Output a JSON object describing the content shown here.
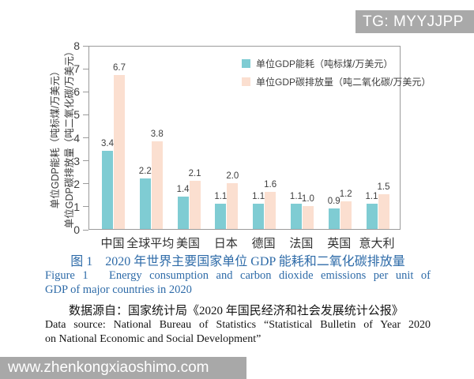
{
  "watermarks": {
    "top": "TG: MYYJJPP",
    "bottom": "www.zhenkongxiaoshimo.com"
  },
  "chart_data": {
    "type": "bar",
    "title": "图 1　2020 年世界主要国家单位 GDP 能耗和二氧化碳排放量",
    "categories": [
      "中国",
      "全球平均",
      "美国",
      "日本",
      "德国",
      "法国",
      "英国",
      "意大利"
    ],
    "series": [
      {
        "name": "单位GDP能耗（吨标煤/万美元）",
        "color": "#7fccd3",
        "values": [
          3.4,
          2.2,
          1.4,
          1.1,
          1.1,
          1.1,
          0.9,
          1.1
        ]
      },
      {
        "name": "单位GDP碳排放量（吨二氧化碳/万美元）",
        "color": "#fbdfd0",
        "values": [
          6.7,
          3.8,
          2.1,
          2.0,
          1.6,
          1.0,
          1.2,
          1.5
        ]
      }
    ],
    "ylim": [
      0,
      8
    ],
    "yticks": [
      0,
      1,
      2,
      3,
      4,
      5,
      6,
      7,
      8
    ],
    "ylabel_lines": [
      "单位GDP能耗（吨标煤/万美元）",
      "单位GDP碳排放量（吨二氧化碳/万美元）"
    ],
    "xlabel": "",
    "grid": false,
    "legend_position": "inside-top-right",
    "value_labels": true
  },
  "caption": {
    "zh": "图 1　2020 年世界主要国家单位 GDP 能耗和二氧化碳排放量",
    "en_line1": "Figure 1　Energy consumption and carbon dioxide emissions per unit of",
    "en_line2": "GDP of major countries in 2020"
  },
  "source": {
    "zh": "数据源自：国家统计局《2020 年国民经济和社会发展统计公报》",
    "en_line1": "Data source: National Bureau of Statistics “Statistical Bulletin of Year 2020",
    "en_line2": "on National Economic and Social Development”"
  }
}
